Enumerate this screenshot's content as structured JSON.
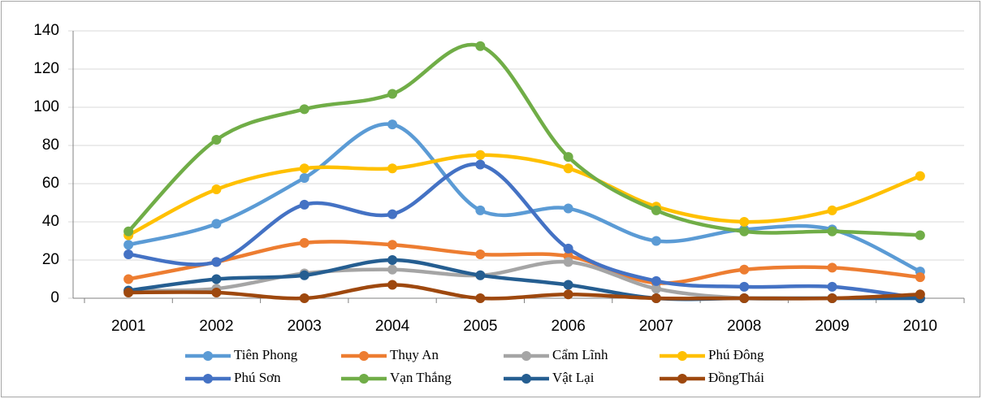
{
  "chart_data": {
    "type": "line",
    "smooth": true,
    "categories": [
      "2001",
      "2002",
      "2003",
      "2004",
      "2005",
      "2006",
      "2007",
      "2008",
      "2009",
      "2010"
    ],
    "ylim": [
      0,
      140
    ],
    "yticks": [
      0,
      20,
      40,
      60,
      80,
      100,
      120,
      140
    ],
    "grid": true,
    "legend": "bottom",
    "series": [
      {
        "name": "Tiên Phong",
        "color": "#5b9bd5",
        "values": [
          28,
          39,
          63,
          91,
          46,
          47,
          30,
          36,
          36,
          14
        ]
      },
      {
        "name": "Thụy An",
        "color": "#ed7d31",
        "values": [
          10,
          19,
          29,
          28,
          23,
          22,
          8,
          15,
          16,
          11
        ]
      },
      {
        "name": "Cẩm Lĩnh",
        "color": "#a5a5a5",
        "values": [
          4,
          5,
          13,
          15,
          12,
          19,
          5,
          0,
          0,
          0
        ]
      },
      {
        "name": "Phú Đông",
        "color": "#ffc000",
        "values": [
          33,
          57,
          68,
          68,
          75,
          68,
          48,
          40,
          46,
          64
        ]
      },
      {
        "name": "Phú Sơn",
        "color": "#4472c4",
        "values": [
          23,
          19,
          49,
          44,
          70,
          26,
          9,
          6,
          6,
          0
        ]
      },
      {
        "name": "Vạn Thắng",
        "color": "#70ad47",
        "values": [
          35,
          83,
          99,
          107,
          132,
          74,
          46,
          35,
          35,
          33
        ]
      },
      {
        "name": "Vật Lại",
        "color": "#255e91",
        "values": [
          4,
          10,
          12,
          20,
          12,
          7,
          0,
          0,
          0,
          0
        ]
      },
      {
        "name": "ĐồngThái",
        "color": "#9e480e",
        "values": [
          3,
          3,
          0,
          7,
          0,
          2,
          0,
          0,
          0,
          2
        ]
      }
    ]
  }
}
